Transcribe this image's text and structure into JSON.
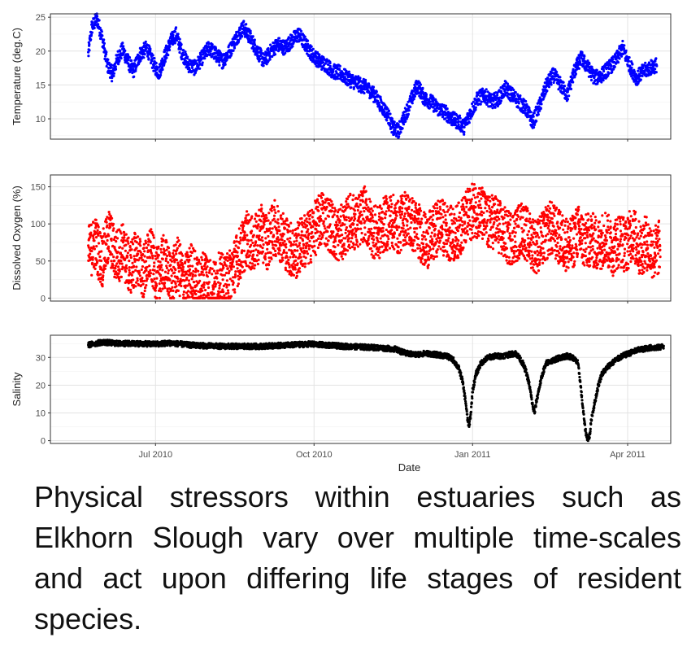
{
  "chart_data": [
    {
      "type": "scatter",
      "ylabel": "Temperature (deg.C)",
      "xlabel": "",
      "color": "#0000ff",
      "ylim": [
        7,
        25.5
      ],
      "yticks": [
        10,
        15,
        20,
        25
      ],
      "xlim": [
        0,
        360
      ],
      "x_unit": "days since 2010-05-01",
      "series": [
        {
          "values": [
            [
              22,
              19.5
            ],
            [
              24,
              23.5
            ],
            [
              27,
              24.8
            ],
            [
              30,
              22
            ],
            [
              33,
              18
            ],
            [
              36,
              16.5
            ],
            [
              39,
              19
            ],
            [
              42,
              20.2
            ],
            [
              45,
              18.5
            ],
            [
              48,
              17
            ],
            [
              52,
              19.5
            ],
            [
              56,
              20.5
            ],
            [
              60,
              18
            ],
            [
              63,
              16.8
            ],
            [
              66,
              19
            ],
            [
              70,
              21.5
            ],
            [
              73,
              22.5
            ],
            [
              76,
              20
            ],
            [
              80,
              18
            ],
            [
              84,
              17.5
            ],
            [
              88,
              19
            ],
            [
              92,
              20.5
            ],
            [
              96,
              19.5
            ],
            [
              100,
              18.5
            ],
            [
              104,
              20
            ],
            [
              108,
              22
            ],
            [
              112,
              23.5
            ],
            [
              116,
              22
            ],
            [
              120,
              20
            ],
            [
              124,
              18.5
            ],
            [
              128,
              20
            ],
            [
              132,
              21
            ],
            [
              136,
              20.5
            ],
            [
              140,
              21.5
            ],
            [
              144,
              22.5
            ],
            [
              148,
              21
            ],
            [
              152,
              19.5
            ],
            [
              156,
              18.5
            ],
            [
              160,
              18
            ],
            [
              164,
              17
            ],
            [
              168,
              16.8
            ],
            [
              172,
              16
            ],
            [
              176,
              15.5
            ],
            [
              180,
              15
            ],
            [
              184,
              14.5
            ],
            [
              188,
              13.5
            ],
            [
              192,
              12
            ],
            [
              196,
              10.5
            ],
            [
              199,
              8.5
            ],
            [
              202,
              8.2
            ],
            [
              205,
              10
            ],
            [
              209,
              12.5
            ],
            [
              213,
              15
            ],
            [
              217,
              13
            ],
            [
              221,
              12.5
            ],
            [
              225,
              11.5
            ],
            [
              229,
              11
            ],
            [
              233,
              10
            ],
            [
              237,
              9.5
            ],
            [
              240,
              8.8
            ],
            [
              244,
              11
            ],
            [
              248,
              13
            ],
            [
              252,
              13.5
            ],
            [
              256,
              12.5
            ],
            [
              260,
              13
            ],
            [
              264,
              14.5
            ],
            [
              268,
              13.5
            ],
            [
              272,
              12.5
            ],
            [
              276,
              11.5
            ],
            [
              280,
              9.5
            ],
            [
              284,
              12
            ],
            [
              288,
              15
            ],
            [
              292,
              16.5
            ],
            [
              296,
              15
            ],
            [
              300,
              13.5
            ],
            [
              304,
              17
            ],
            [
              308,
              19
            ],
            [
              312,
              17.5
            ],
            [
              316,
              16
            ],
            [
              320,
              16.5
            ],
            [
              324,
              17.5
            ],
            [
              328,
              18.5
            ],
            [
              332,
              20.5
            ],
            [
              336,
              18
            ],
            [
              340,
              16
            ],
            [
              344,
              17
            ],
            [
              348,
              17.5
            ],
            [
              352,
              18
            ]
          ]
        }
      ]
    },
    {
      "type": "scatter",
      "ylabel": "Dissolved Oxygen (%)",
      "xlabel": "",
      "color": "#ff0000",
      "ylim": [
        -4,
        166
      ],
      "yticks": [
        0,
        50,
        100,
        150
      ],
      "xlim": [
        0,
        360
      ],
      "x_unit": "days since 2010-05-01",
      "series": [
        {
          "values": [
            [
              22,
              60
            ],
            [
              26,
              75
            ],
            [
              30,
              50
            ],
            [
              34,
              85
            ],
            [
              38,
              55
            ],
            [
              42,
              65
            ],
            [
              46,
              40
            ],
            [
              50,
              55
            ],
            [
              54,
              35
            ],
            [
              58,
              60
            ],
            [
              62,
              30
            ],
            [
              66,
              50
            ],
            [
              70,
              25
            ],
            [
              74,
              45
            ],
            [
              78,
              20
            ],
            [
              82,
              40
            ],
            [
              86,
              15
            ],
            [
              90,
              35
            ],
            [
              94,
              10
            ],
            [
              98,
              25
            ],
            [
              102,
              20
            ],
            [
              106,
              40
            ],
            [
              110,
              60
            ],
            [
              114,
              80
            ],
            [
              118,
              70
            ],
            [
              122,
              90
            ],
            [
              126,
              75
            ],
            [
              130,
              95
            ],
            [
              134,
              85
            ],
            [
              138,
              70
            ],
            [
              142,
              60
            ],
            [
              146,
              75
            ],
            [
              150,
              80
            ],
            [
              154,
              95
            ],
            [
              158,
              110
            ],
            [
              162,
              100
            ],
            [
              166,
              85
            ],
            [
              170,
              90
            ],
            [
              174,
              105
            ],
            [
              178,
              100
            ],
            [
              182,
              115
            ],
            [
              186,
              95
            ],
            [
              190,
              85
            ],
            [
              194,
              100
            ],
            [
              198,
              105
            ],
            [
              202,
              95
            ],
            [
              206,
              110
            ],
            [
              210,
              100
            ],
            [
              214,
              90
            ],
            [
              218,
              75
            ],
            [
              222,
              85
            ],
            [
              226,
              100
            ],
            [
              230,
              90
            ],
            [
              234,
              85
            ],
            [
              238,
              95
            ],
            [
              242,
              110
            ],
            [
              246,
              120
            ],
            [
              250,
              115
            ],
            [
              254,
              100
            ],
            [
              258,
              105
            ],
            [
              262,
              90
            ],
            [
              266,
              80
            ],
            [
              270,
              85
            ],
            [
              274,
              95
            ],
            [
              278,
              80
            ],
            [
              282,
              70
            ],
            [
              286,
              80
            ],
            [
              290,
              95
            ],
            [
              294,
              85
            ],
            [
              298,
              75
            ],
            [
              302,
              70
            ],
            [
              306,
              90
            ],
            [
              310,
              75
            ],
            [
              314,
              80
            ],
            [
              318,
              70
            ],
            [
              322,
              85
            ],
            [
              326,
              65
            ],
            [
              330,
              80
            ],
            [
              334,
              70
            ],
            [
              338,
              90
            ],
            [
              342,
              65
            ],
            [
              346,
              75
            ],
            [
              350,
              60
            ],
            [
              354,
              70
            ]
          ]
        }
      ]
    },
    {
      "type": "scatter",
      "ylabel": "Salinity",
      "xlabel": "Date",
      "color": "#000000",
      "ylim": [
        -1,
        38
      ],
      "yticks": [
        0,
        10,
        20,
        30
      ],
      "xlim": [
        0,
        360
      ],
      "x_unit": "days since 2010-05-01",
      "xticks": [
        {
          "day": 61,
          "label": "Jul 2010"
        },
        {
          "day": 153,
          "label": "Oct 2010"
        },
        {
          "day": 245,
          "label": "Jan 2011"
        },
        {
          "day": 335,
          "label": "Apr 2011"
        }
      ],
      "series": [
        {
          "values": [
            [
              22,
              34.5
            ],
            [
              30,
              35.5
            ],
            [
              40,
              35
            ],
            [
              50,
              35
            ],
            [
              60,
              34.8
            ],
            [
              70,
              35.2
            ],
            [
              80,
              34.5
            ],
            [
              90,
              34.2
            ],
            [
              100,
              34
            ],
            [
              110,
              34
            ],
            [
              120,
              34
            ],
            [
              130,
              34.2
            ],
            [
              140,
              34.5
            ],
            [
              150,
              34.8
            ],
            [
              160,
              34.5
            ],
            [
              170,
              34
            ],
            [
              180,
              33.8
            ],
            [
              190,
              33.5
            ],
            [
              200,
              33
            ],
            [
              206,
              31.5
            ],
            [
              212,
              31
            ],
            [
              218,
              31.5
            ],
            [
              224,
              31
            ],
            [
              230,
              30.5
            ],
            [
              234,
              29
            ],
            [
              237,
              26
            ],
            [
              239,
              22
            ],
            [
              241,
              14
            ],
            [
              242,
              8
            ],
            [
              243,
              5
            ],
            [
              244,
              10
            ],
            [
              245,
              18
            ],
            [
              247,
              24
            ],
            [
              250,
              28
            ],
            [
              254,
              30
            ],
            [
              258,
              30.5
            ],
            [
              262,
              30.5
            ],
            [
              266,
              31
            ],
            [
              270,
              31.5
            ],
            [
              272,
              30
            ],
            [
              274,
              28
            ],
            [
              276,
              25
            ],
            [
              278,
              20
            ],
            [
              279,
              16
            ],
            [
              280,
              12
            ],
            [
              281,
              10
            ],
            [
              282,
              14
            ],
            [
              284,
              20
            ],
            [
              286,
              25
            ],
            [
              288,
              28
            ],
            [
              292,
              29
            ],
            [
              296,
              30
            ],
            [
              300,
              30.5
            ],
            [
              303,
              30
            ],
            [
              306,
              28
            ],
            [
              307,
              24
            ],
            [
              308,
              18
            ],
            [
              309,
              12
            ],
            [
              310,
              6
            ],
            [
              311,
              2
            ],
            [
              312,
              0.5
            ],
            [
              313,
              2
            ],
            [
              314,
              8
            ],
            [
              316,
              14
            ],
            [
              318,
              20
            ],
            [
              320,
              24
            ],
            [
              324,
              27
            ],
            [
              328,
              29
            ],
            [
              332,
              30.5
            ],
            [
              336,
              31.5
            ],
            [
              340,
              32.5
            ],
            [
              344,
              33
            ],
            [
              348,
              33.5
            ],
            [
              352,
              33.5
            ],
            [
              356,
              34
            ]
          ]
        }
      ]
    }
  ],
  "caption": "Physical stressors within estuaries such as Elkhorn Slough vary over multiple time-scales and act upon differing life stages of resident species."
}
